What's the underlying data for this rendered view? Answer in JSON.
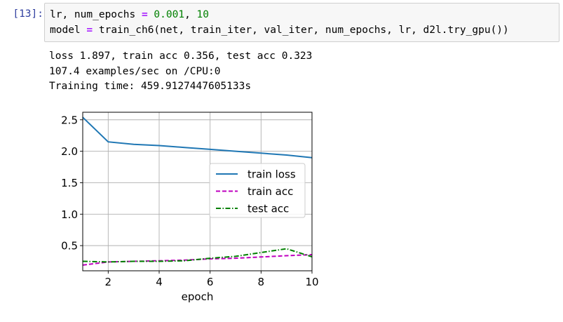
{
  "cell": {
    "prompt": "[13]:",
    "code": {
      "line1": {
        "vars": "lr, num_epochs",
        "op": "=",
        "val1": "0.001",
        "sep": ",",
        "val2": "10"
      },
      "line2": {
        "lhs": "model",
        "op": "=",
        "rhs": "train_ch6(net, train_iter, val_iter, num_epochs, lr, d2l.try_gpu())"
      }
    },
    "output_lines": [
      "loss 1.897, train acc 0.356, test acc 0.323",
      "107.4 examples/sec on /CPU:0",
      "Training time: 459.9127447605133s"
    ]
  },
  "colors": {
    "train_loss": "#1f77b4",
    "train_acc": "#bf00bf",
    "test_acc": "#008000",
    "grid": "#b0b0b0"
  },
  "chart_data": {
    "type": "line",
    "xlabel": "epoch",
    "ylabel": "",
    "xlim": [
      1,
      10
    ],
    "ylim": [
      0.1,
      2.62
    ],
    "xticks": [
      2,
      4,
      6,
      8,
      10
    ],
    "yticks": [
      0.5,
      1.0,
      1.5,
      2.0,
      2.5
    ],
    "xtick_labels": [
      "2",
      "4",
      "6",
      "8",
      "10"
    ],
    "ytick_labels": [
      "0.5",
      "1.0",
      "1.5",
      "2.0",
      "2.5"
    ],
    "grid": true,
    "legend_position": "center-right",
    "x": [
      1,
      2,
      3,
      4,
      5,
      6,
      7,
      8,
      9,
      10
    ],
    "series": [
      {
        "name": "train loss",
        "style": "solid",
        "values": [
          2.54,
          2.15,
          2.11,
          2.09,
          2.06,
          2.03,
          2.0,
          1.97,
          1.94,
          1.897
        ]
      },
      {
        "name": "train acc",
        "style": "dashed",
        "values": [
          0.19,
          0.24,
          0.25,
          0.26,
          0.27,
          0.29,
          0.3,
          0.32,
          0.34,
          0.356
        ]
      },
      {
        "name": "test acc",
        "style": "dashdot",
        "values": [
          0.25,
          0.24,
          0.25,
          0.25,
          0.26,
          0.3,
          0.33,
          0.39,
          0.45,
          0.323
        ]
      }
    ]
  }
}
